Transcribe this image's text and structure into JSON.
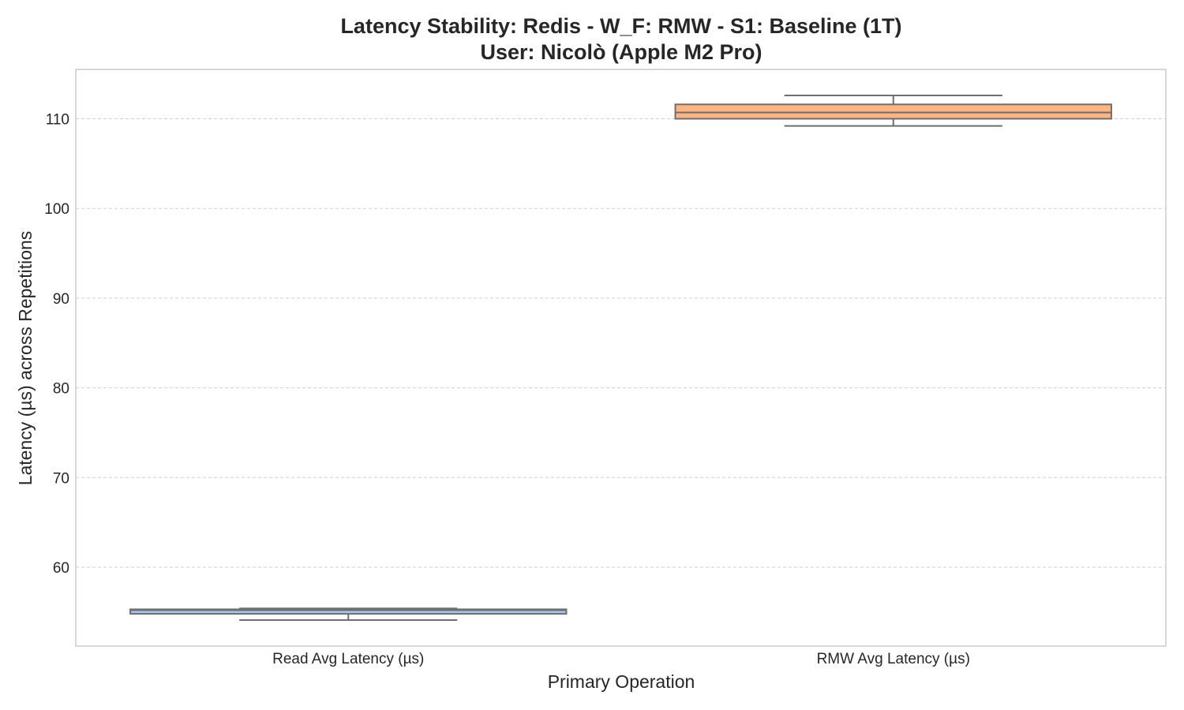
{
  "chart_data": {
    "type": "box",
    "title": "Latency Stability: Redis - W_F: RMW - S1: Baseline (1T)",
    "subtitle": "User: Nicolò (Apple M2 Pro)",
    "xlabel": "Primary Operation",
    "ylabel": "Latency (µs) across Repetitions",
    "ylim": [
      51.2,
      115.5
    ],
    "yticks": [
      60,
      70,
      80,
      90,
      100,
      110
    ],
    "grid": true,
    "categories": [
      "Read Avg Latency (µs)",
      "RMW Avg Latency (µs)"
    ],
    "boxes": [
      {
        "category": "Read Avg Latency (µs)",
        "min": 54.1,
        "q1": 54.8,
        "median": 55.2,
        "q3": 55.3,
        "max": 55.4,
        "color": "#a1c9f4"
      },
      {
        "category": "RMW Avg Latency (µs)",
        "min": 109.2,
        "q1": 110.0,
        "median": 110.7,
        "q3": 111.6,
        "max": 112.6,
        "color": "#ffb482"
      }
    ]
  }
}
